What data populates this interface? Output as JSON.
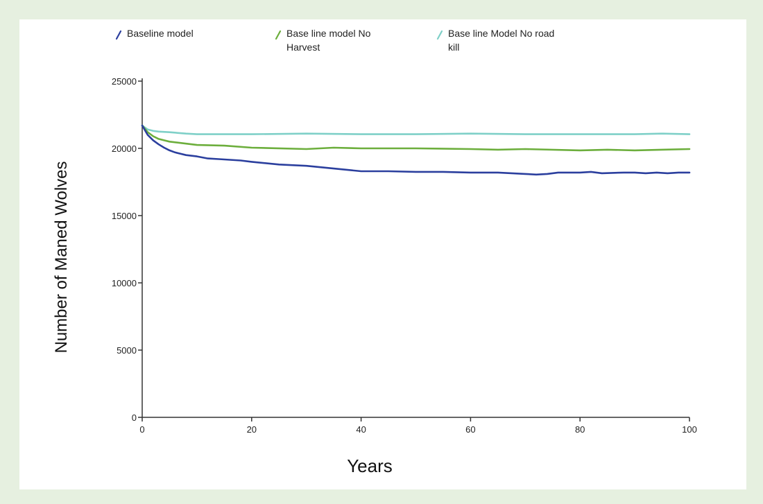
{
  "colors": {
    "page_background": "#e6f0e0",
    "plot_background": "#ffffff",
    "axis": "#333333"
  },
  "chart_data": {
    "type": "line",
    "xlabel": "Years",
    "ylabel": "Number of Maned Wolves",
    "xlim": [
      0,
      100
    ],
    "ylim": [
      0,
      25000
    ],
    "xticks": [
      0,
      20,
      40,
      60,
      80,
      100
    ],
    "yticks": [
      0,
      5000,
      10000,
      15000,
      20000,
      25000
    ],
    "grid": false,
    "legend_position": "top",
    "series": [
      {
        "name_lines": [
          "Baseline model"
        ],
        "color": "#2b3f9e",
        "x": [
          0,
          1,
          2,
          3,
          4,
          5,
          6,
          7,
          8,
          10,
          12,
          14,
          16,
          18,
          20,
          25,
          30,
          35,
          40,
          45,
          50,
          55,
          60,
          65,
          70,
          72,
          74,
          76,
          80,
          82,
          84,
          88,
          90,
          92,
          94,
          96,
          98,
          100
        ],
        "y": [
          21700,
          21000,
          20600,
          20300,
          20050,
          19850,
          19700,
          19600,
          19500,
          19400,
          19250,
          19200,
          19150,
          19100,
          19000,
          18800,
          18700,
          18500,
          18300,
          18300,
          18250,
          18250,
          18200,
          18200,
          18100,
          18050,
          18100,
          18200,
          18200,
          18250,
          18150,
          18200,
          18200,
          18150,
          18200,
          18150,
          18200,
          18200
        ]
      },
      {
        "name_lines": [
          "Base line model No",
          "Harvest"
        ],
        "color": "#6cae3c",
        "x": [
          0,
          1,
          2,
          3,
          4,
          5,
          7,
          10,
          15,
          20,
          30,
          35,
          40,
          50,
          60,
          65,
          70,
          80,
          85,
          90,
          95,
          100
        ],
        "y": [
          21700,
          21200,
          20900,
          20700,
          20600,
          20500,
          20400,
          20250,
          20200,
          20050,
          19950,
          20050,
          20000,
          20000,
          19950,
          19900,
          19950,
          19850,
          19900,
          19850,
          19900,
          19950
        ]
      },
      {
        "name_lines": [
          "Base line Model No road",
          "kill"
        ],
        "color": "#7fd0c8",
        "x": [
          0,
          1,
          2,
          3,
          5,
          8,
          10,
          15,
          20,
          30,
          40,
          50,
          60,
          70,
          80,
          90,
          95,
          100
        ],
        "y": [
          21700,
          21400,
          21300,
          21250,
          21200,
          21100,
          21050,
          21050,
          21050,
          21100,
          21050,
          21050,
          21100,
          21050,
          21050,
          21050,
          21100,
          21050
        ]
      }
    ]
  }
}
